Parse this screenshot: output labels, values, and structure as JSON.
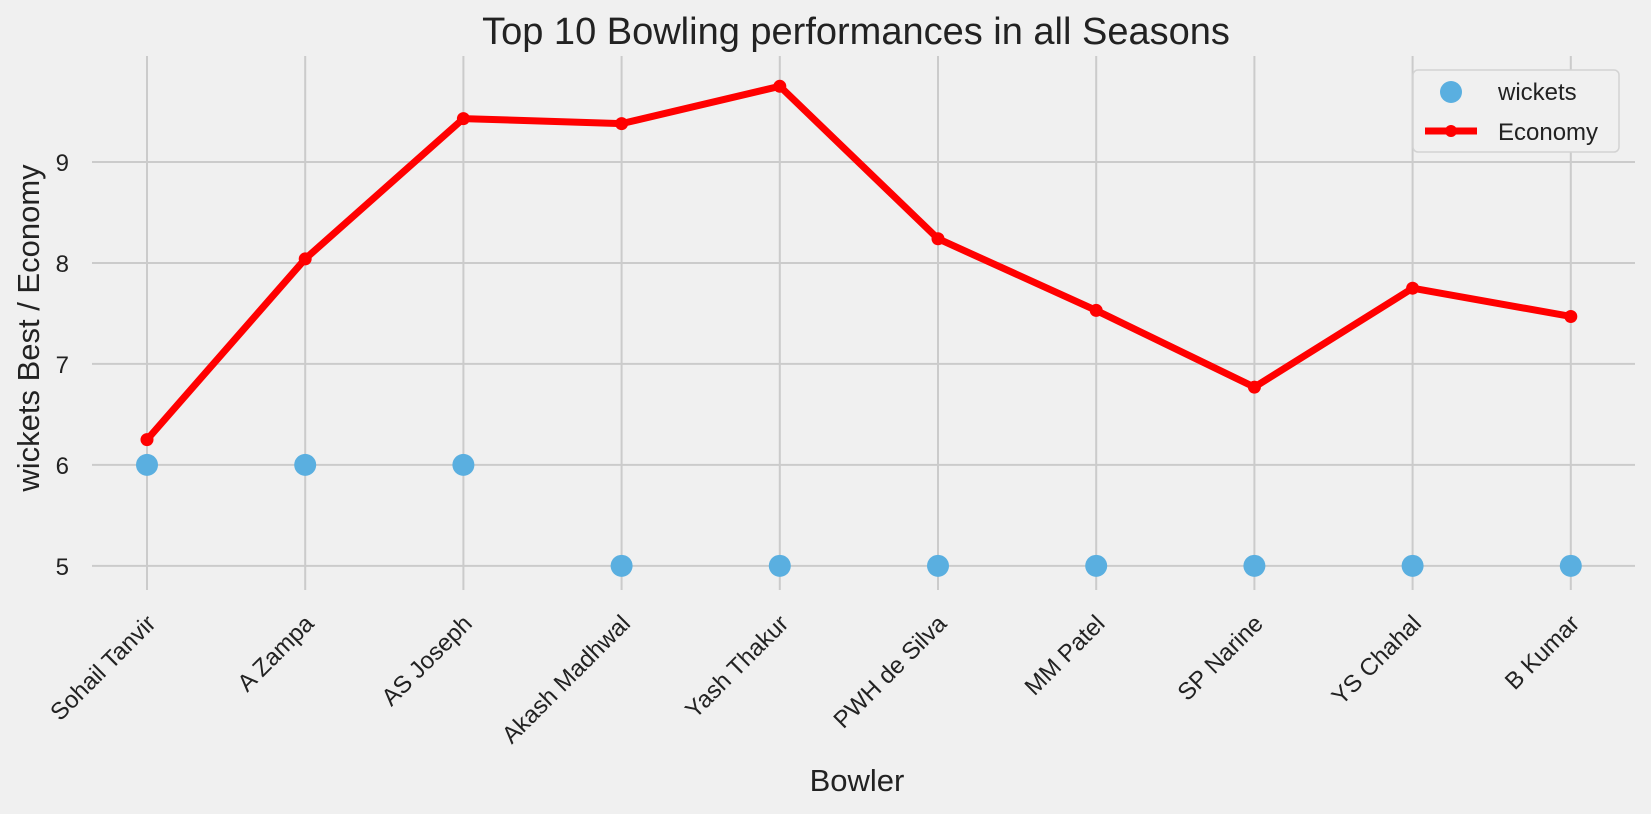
{
  "chart_data": {
    "type": "line",
    "title": "Top 10 Bowling performances in all Seasons",
    "xlabel": "Bowler",
    "ylabel": "wickets Best / Economy",
    "categories": [
      "Sohail Tanvir",
      "A Zampa",
      "AS Joseph",
      "Akash Madhwal",
      "Yash Thakur",
      "PWH de Silva",
      "MM Patel",
      "SP Narine",
      "YS Chahal",
      "B Kumar"
    ],
    "yticks": [
      "5",
      "6",
      "7",
      "8",
      "9"
    ],
    "ylim": [
      4.83,
      10.05
    ],
    "grid": true,
    "legend_position": "top-right",
    "series": [
      {
        "name": "wickets",
        "kind": "scatter",
        "color": "#5aafe0",
        "values": [
          6,
          6,
          6,
          5,
          5,
          5,
          5,
          5,
          5,
          5
        ]
      },
      {
        "name": "Economy",
        "kind": "line",
        "color": "#ff0000",
        "values": [
          6.25,
          8.04,
          9.43,
          9.38,
          9.75,
          8.24,
          7.53,
          6.77,
          7.75,
          7.47
        ]
      }
    ]
  }
}
